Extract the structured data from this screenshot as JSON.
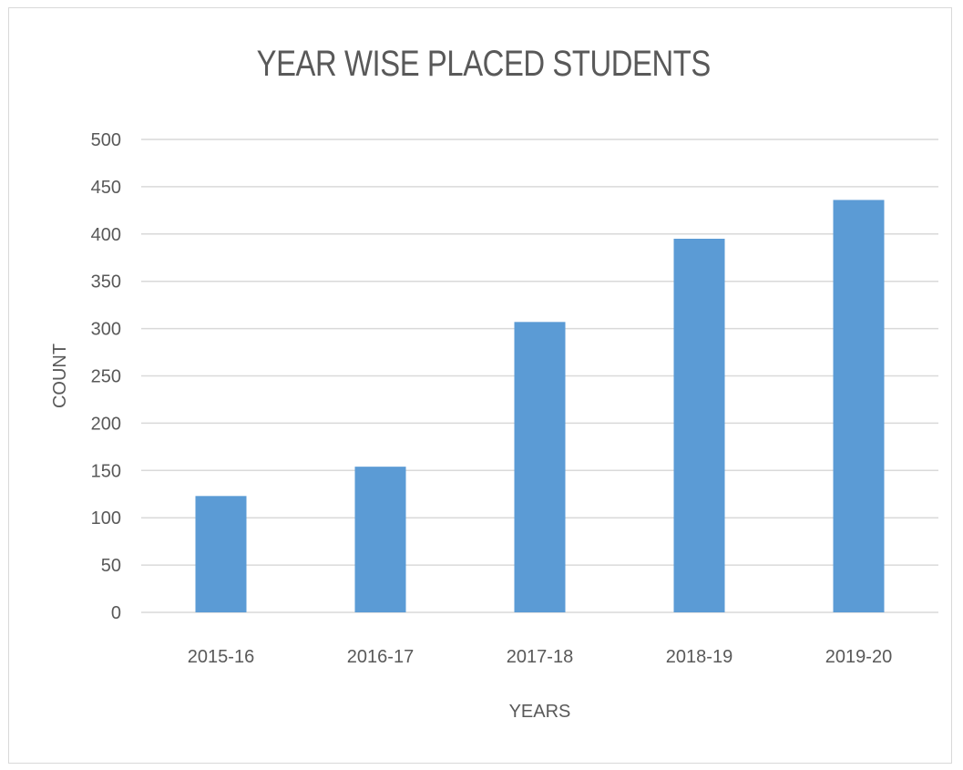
{
  "chart_data": {
    "type": "bar",
    "title": "YEAR WISE PLACED STUDENTS",
    "xlabel": "YEARS",
    "ylabel": "COUNT",
    "categories": [
      "2015-16",
      "2016-17",
      "2017-18",
      "2018-19",
      "2019-20"
    ],
    "values": [
      123,
      154,
      307,
      395,
      436
    ],
    "ylim": [
      0,
      500
    ],
    "yticks": [
      0,
      50,
      100,
      150,
      200,
      250,
      300,
      350,
      400,
      450,
      500
    ],
    "grid": true,
    "legend": "none",
    "bar_color": "#5b9bd5",
    "grid_color": "#d9d9d9",
    "text_color": "#595959"
  }
}
